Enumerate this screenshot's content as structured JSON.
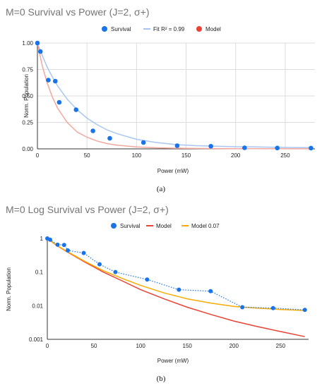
{
  "chart_data": [
    {
      "type": "scatter",
      "title": "M=0 Survival vs Power (J=2, σ+)",
      "xlabel": "Power (mW)",
      "ylabel": "Norm. Population",
      "xlim": [
        0,
        280
      ],
      "ylim": [
        0,
        1.0
      ],
      "x_ticks": [
        "0",
        "50",
        "100",
        "150",
        "200",
        "250"
      ],
      "y_ticks": [
        "0.00",
        "0.25",
        "0.50",
        "0.75",
        "1.00"
      ],
      "legend_position": "top",
      "grid": true,
      "caption": "(a)",
      "series": [
        {
          "name": "Survival",
          "kind": "points",
          "color": "#1a73e8",
          "x": [
            0,
            3,
            11,
            18,
            22,
            39,
            56,
            73,
            107,
            141,
            175,
            209,
            242,
            276
          ],
          "y": [
            1.0,
            0.92,
            0.65,
            0.64,
            0.44,
            0.37,
            0.17,
            0.1,
            0.06,
            0.03,
            0.025,
            0.01,
            0.008,
            0.007
          ]
        },
        {
          "name": "Fit R² = 0.99",
          "kind": "line",
          "color": "#a7c7f2",
          "x": [
            0,
            5,
            10,
            15,
            20,
            30,
            40,
            50,
            60,
            70,
            80,
            100,
            120,
            140,
            160,
            180,
            200,
            220,
            240,
            260,
            276
          ],
          "y": [
            1.0,
            0.88,
            0.77,
            0.68,
            0.6,
            0.47,
            0.37,
            0.29,
            0.23,
            0.18,
            0.145,
            0.09,
            0.06,
            0.04,
            0.03,
            0.025,
            0.02,
            0.018,
            0.015,
            0.013,
            0.012
          ]
        },
        {
          "name": "Model",
          "kind": "line",
          "color": "#f4a79d",
          "x": [
            0,
            5,
            10,
            15,
            20,
            30,
            40,
            50,
            60,
            70,
            80,
            100,
            120,
            140,
            160,
            180,
            200,
            220,
            240,
            260,
            276
          ],
          "y": [
            1.0,
            0.78,
            0.62,
            0.49,
            0.39,
            0.25,
            0.16,
            0.11,
            0.075,
            0.05,
            0.035,
            0.018,
            0.01,
            0.006,
            0.004,
            0.003,
            0.002,
            0.0015,
            0.001,
            0.0008,
            0.0007
          ]
        }
      ],
      "legend_items": [
        {
          "label": "Survival",
          "color": "#1a73e8",
          "marker": "dot"
        },
        {
          "label": "Fit R² = 0.99",
          "color": "#a7c7f2",
          "marker": "line"
        },
        {
          "label": "Model",
          "color": "#ea4335",
          "marker": "dot"
        }
      ]
    },
    {
      "type": "line",
      "scale": "log",
      "title": "M=0 Log Survival vs Power (J=2, σ+)",
      "xlabel": "Power (mW)",
      "ylabel": "Norm. Population",
      "xlim": [
        0,
        280
      ],
      "ylim": [
        0.001,
        1
      ],
      "x_ticks": [
        "0",
        "50",
        "100",
        "150",
        "200",
        "250"
      ],
      "y_ticks": [
        "0.001",
        "0.01",
        "0.1",
        "1"
      ],
      "legend_position": "top",
      "grid": false,
      "caption": "(b)",
      "series": [
        {
          "name": "Survival",
          "kind": "dotted-points",
          "color": "#1a73e8",
          "x": [
            0,
            3,
            11,
            18,
            22,
            39,
            56,
            73,
            107,
            141,
            175,
            209,
            242,
            276
          ],
          "y": [
            1.0,
            0.92,
            0.65,
            0.64,
            0.44,
            0.37,
            0.17,
            0.1,
            0.06,
            0.03,
            0.027,
            0.009,
            0.0085,
            0.0075
          ]
        },
        {
          "name": "Model",
          "kind": "line",
          "color": "#ea4335",
          "x": [
            0,
            10,
            20,
            40,
            60,
            80,
            100,
            125,
            150,
            175,
            200,
            225,
            250,
            276
          ],
          "y": [
            1.0,
            0.62,
            0.42,
            0.2,
            0.1,
            0.055,
            0.03,
            0.016,
            0.009,
            0.0055,
            0.0035,
            0.0024,
            0.0017,
            0.0012
          ]
        },
        {
          "name": "Model 0.07",
          "kind": "line",
          "color": "#f9ab00",
          "x": [
            0,
            10,
            20,
            40,
            60,
            80,
            100,
            125,
            150,
            175,
            200,
            225,
            250,
            276
          ],
          "y": [
            1.0,
            0.63,
            0.43,
            0.21,
            0.11,
            0.065,
            0.04,
            0.024,
            0.016,
            0.012,
            0.0095,
            0.0085,
            0.0077,
            0.0072
          ]
        }
      ],
      "legend_items": [
        {
          "label": "Survival",
          "color": "#1a73e8",
          "marker": "dot"
        },
        {
          "label": "Model",
          "color": "#ea4335",
          "marker": "line"
        },
        {
          "label": "Model 0.07",
          "color": "#f9ab00",
          "marker": "line"
        }
      ]
    }
  ]
}
